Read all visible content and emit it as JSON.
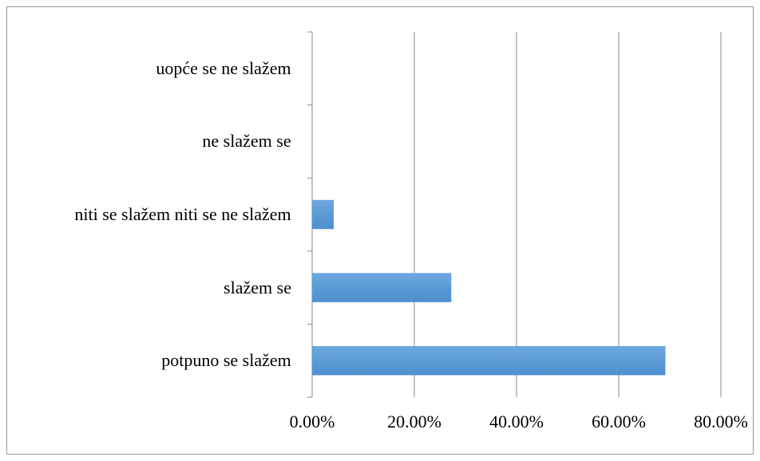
{
  "chart_data": {
    "type": "bar",
    "orientation": "horizontal",
    "categories": [
      "uopće se ne slažem",
      "ne slažem se",
      "niti se slažem niti se ne slažem",
      "slažem se",
      "potpuno se slažem"
    ],
    "values": [
      0,
      0,
      4.2,
      27.2,
      69.1
    ],
    "color": "#5b9bd5",
    "xlim": [
      0,
      80
    ],
    "xticks": [
      {
        "value": 0,
        "label": "0.00%"
      },
      {
        "value": 20,
        "label": "20.00%"
      },
      {
        "value": 40,
        "label": "40.00%"
      },
      {
        "value": 60,
        "label": "60.00%"
      },
      {
        "value": 80,
        "label": "80.00%"
      }
    ],
    "grid": true
  }
}
